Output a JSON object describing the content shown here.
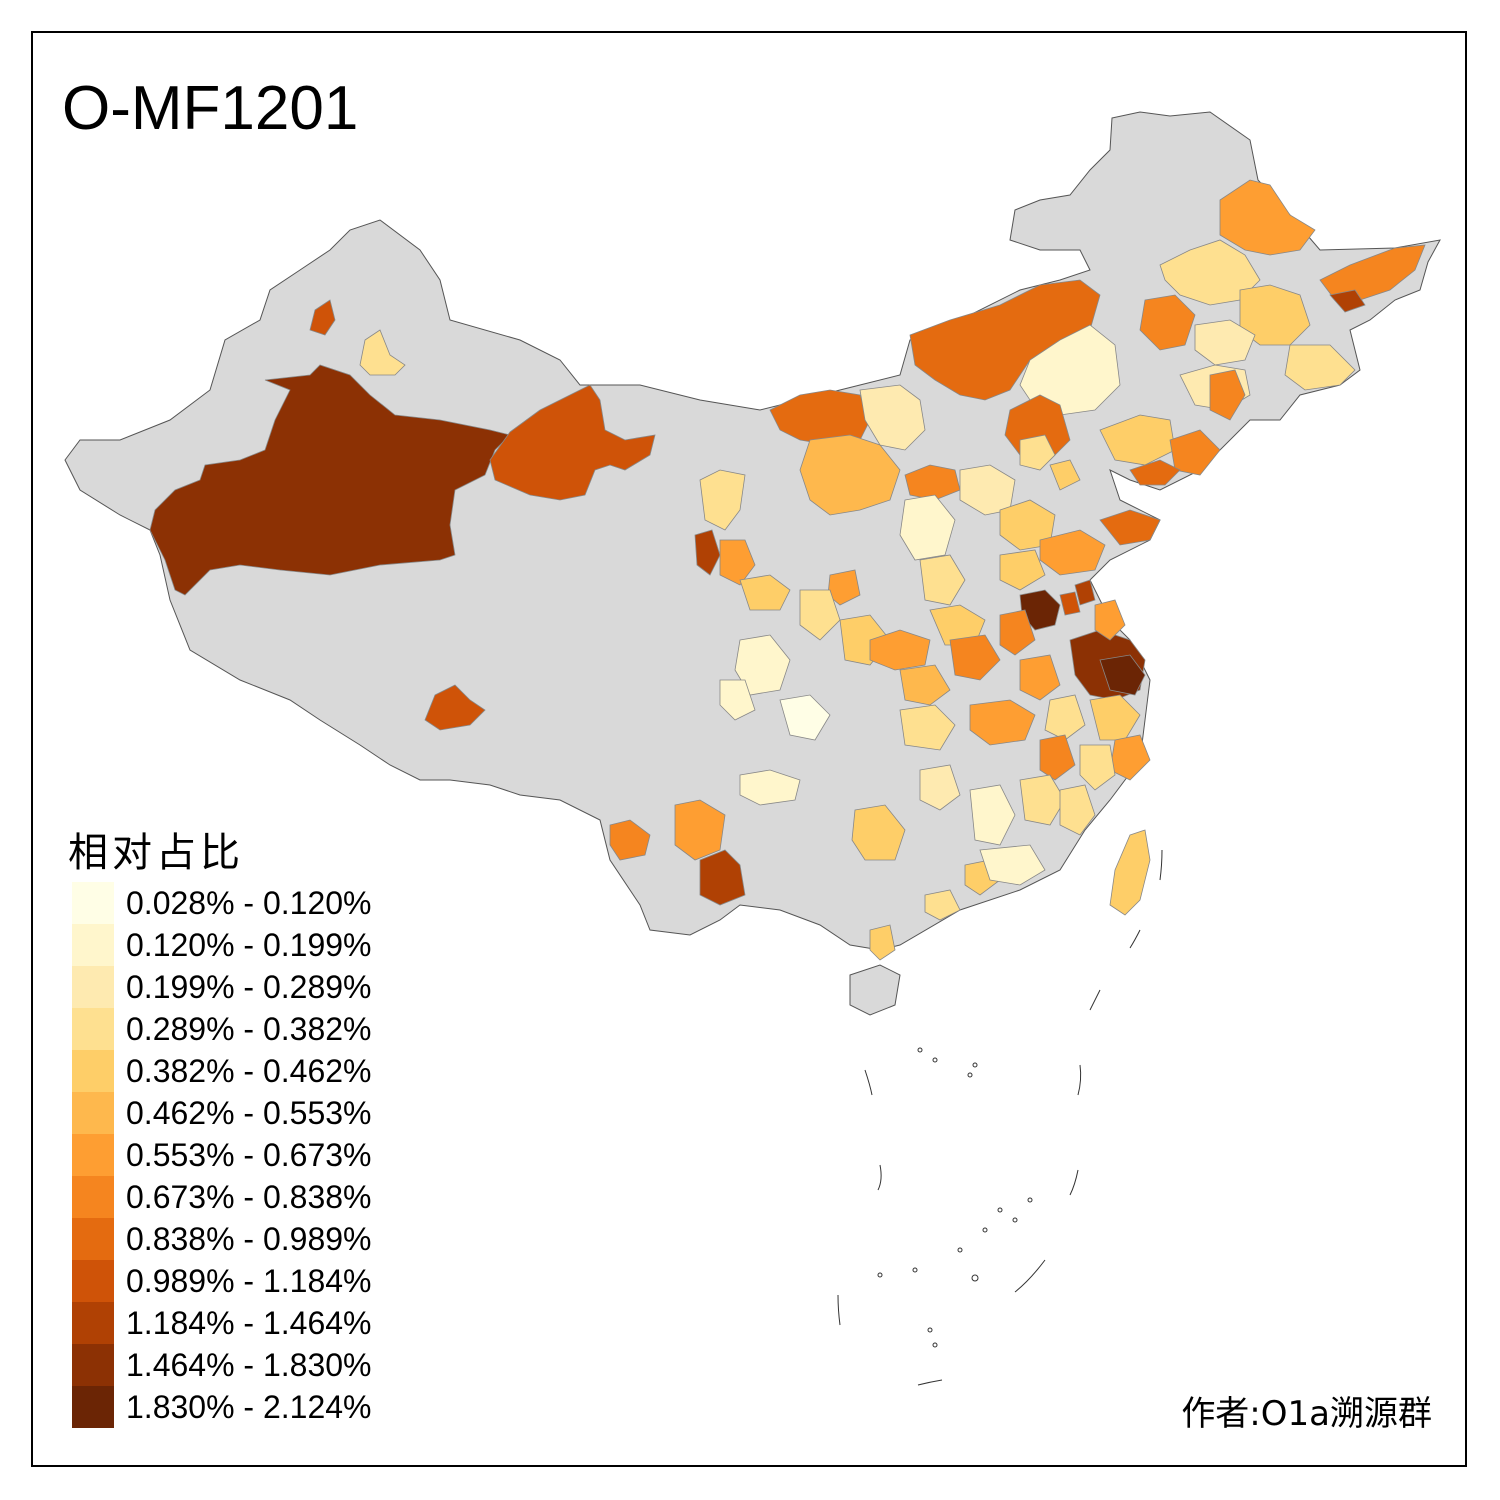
{
  "title": "O-MF1201",
  "legend": {
    "title": "相对占比",
    "bins": [
      {
        "label": "0.028% - 0.120%",
        "color": "#fffee6"
      },
      {
        "label": "0.120% - 0.199%",
        "color": "#fff6cc"
      },
      {
        "label": "0.199% - 0.289%",
        "color": "#feeab0"
      },
      {
        "label": "0.289% - 0.382%",
        "color": "#fee090"
      },
      {
        "label": "0.382% - 0.462%",
        "color": "#fece68"
      },
      {
        "label": "0.462% - 0.553%",
        "color": "#feb84d"
      },
      {
        "label": "0.553% - 0.673%",
        "color": "#fe9e32"
      },
      {
        "label": "0.673% - 0.838%",
        "color": "#f5851f"
      },
      {
        "label": "0.838% - 0.989%",
        "color": "#e46b10"
      },
      {
        "label": "0.989% - 1.184%",
        "color": "#cf5308"
      },
      {
        "label": "1.184% - 1.464%",
        "color": "#b04104"
      },
      {
        "label": "1.464% - 1.830%",
        "color": "#8c3104"
      },
      {
        "label": "1.830% - 2.124%",
        "color": "#6b2505"
      }
    ]
  },
  "author": "作者:O1a溯源群",
  "no_data_color": "#d9d9d9"
}
